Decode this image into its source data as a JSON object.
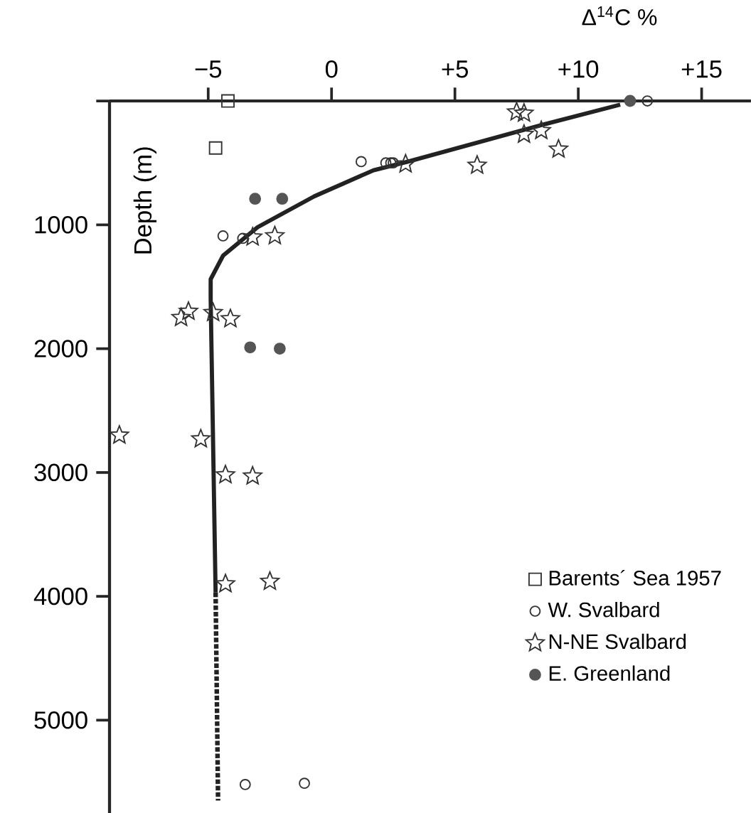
{
  "chart_data": {
    "type": "scatter",
    "xlabel": "Δ$^{14}$C %",
    "ylabel": "Depth (m)",
    "xlim": [
      -9,
      17
    ],
    "ylim": [
      5750,
      0
    ],
    "xticks": [
      {
        "value": -5,
        "label": "−5"
      },
      0,
      {
        "value": 5,
        "label": "+5"
      },
      {
        "value": 10,
        "label": "+10"
      },
      {
        "value": 15,
        "label": "+15"
      }
    ],
    "yticks": [
      {
        "value": 0,
        "label": null
      },
      1000,
      2000,
      3000,
      4000,
      5000
    ],
    "legend": "bottom right",
    "series": [
      {
        "name": "Barents´ Sea 1957",
        "marker": "square",
        "color": "#333333",
        "x": [
          -4.2,
          -4.7
        ],
        "values": [
          0,
          380
        ]
      },
      {
        "name": "W. Svalbard",
        "marker": "circle",
        "color": "#333333",
        "x": [
          12.8,
          1.2,
          2.2,
          2.4,
          2.5,
          -4.4,
          -3.6,
          -3.5,
          -1.1
        ],
        "values": [
          0,
          490,
          500,
          500,
          500,
          1090,
          1110,
          5520,
          5510
        ]
      },
      {
        "name": "N-NE Svalbard",
        "marker": "star",
        "color": "#333333",
        "x": [
          7.5,
          7.8,
          7.8,
          8.5,
          9.2,
          5.9,
          3.0,
          -3.2,
          -2.3,
          -6.1,
          -5.8,
          -4.8,
          -4.1,
          -8.6,
          -5.3,
          -4.3,
          -3.2,
          -4.3,
          -2.5
        ],
        "values": [
          90,
          100,
          270,
          240,
          390,
          520,
          510,
          1100,
          1090,
          1750,
          1700,
          1710,
          1760,
          2700,
          2730,
          3020,
          3030,
          3900,
          3880
        ]
      },
      {
        "name": "E. Greenland",
        "marker": "circle",
        "color": "#555555",
        "x": [
          12.1,
          -3.1,
          -2.0,
          -3.3,
          -2.1
        ],
        "values": [
          0,
          790,
          790,
          1990,
          2000
        ]
      },
      {
        "type": "line",
        "line_style": "solid",
        "color": "#222222",
        "x": [
          11.7,
          8.6,
          3.1,
          1.7,
          -0.7,
          -3.0,
          -4.4,
          -4.9,
          -4.9,
          -4.7
        ],
        "values": [
          30,
          190,
          490,
          560,
          770,
          1020,
          1250,
          1440,
          1600,
          3970
        ]
      },
      {
        "type": "line",
        "line_style": "dotted",
        "color": "#222222",
        "x": [
          -4.7,
          -4.6
        ],
        "values": [
          3970,
          5650
        ]
      }
    ]
  }
}
